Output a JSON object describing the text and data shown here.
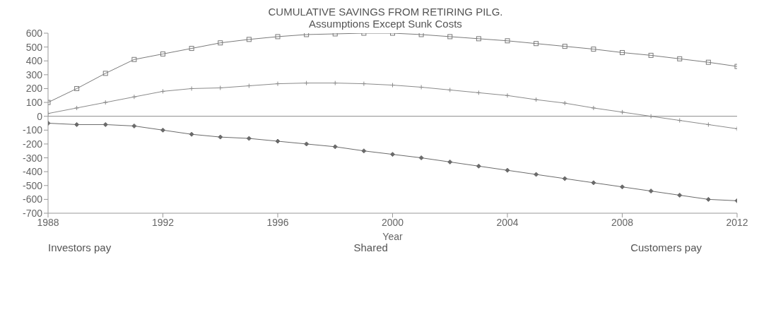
{
  "chart_data": {
    "type": "line",
    "title": "CUMULATIVE SAVINGS FROM RETIRING PILG.",
    "subtitle": "Assumptions Except Sunk Costs",
    "xlabel": "Year",
    "x": [
      1988,
      1989,
      1990,
      1991,
      1992,
      1993,
      1994,
      1995,
      1996,
      1997,
      1998,
      1999,
      2000,
      2001,
      2002,
      2003,
      2004,
      2005,
      2006,
      2007,
      2008,
      2009,
      2010,
      2011,
      2012
    ],
    "series": [
      {
        "color": "#7a7a7a",
        "marker": "square",
        "values": [
          100,
          200,
          310,
          410,
          450,
          490,
          530,
          555,
          575,
          590,
          595,
          600,
          600,
          590,
          575,
          560,
          545,
          525,
          505,
          485,
          460,
          440,
          415,
          390,
          360
        ]
      },
      {
        "color": "#8a8a8a",
        "marker": "cross",
        "values": [
          20,
          60,
          100,
          140,
          180,
          200,
          205,
          220,
          235,
          240,
          240,
          235,
          225,
          210,
          190,
          170,
          150,
          120,
          95,
          60,
          30,
          0,
          -30,
          -60,
          -90
        ]
      },
      {
        "color": "#6a6a6a",
        "marker": "diamond",
        "values": [
          -50,
          -60,
          -60,
          -70,
          -100,
          -130,
          -150,
          -160,
          -180,
          -200,
          -220,
          -250,
          -275,
          -300,
          -330,
          -360,
          -390,
          -420,
          -450,
          -480,
          -510,
          -540,
          -570,
          -600,
          -610
        ]
      }
    ],
    "ref_lines": [
      {
        "axis": "y",
        "value": 0,
        "color": "#8a8a8a"
      }
    ],
    "xlim": [
      1988,
      2012
    ],
    "xticks": [
      1988,
      1992,
      1996,
      2000,
      2004,
      2008,
      2012
    ],
    "ylim": [
      -700,
      600
    ],
    "yticks": [
      -700,
      -600,
      -500,
      -400,
      -300,
      -200,
      -100,
      0,
      100,
      200,
      300,
      400,
      500,
      600
    ],
    "legend": false,
    "annotations": [
      "Investors pay",
      "Shared",
      "Customers pay"
    ]
  }
}
